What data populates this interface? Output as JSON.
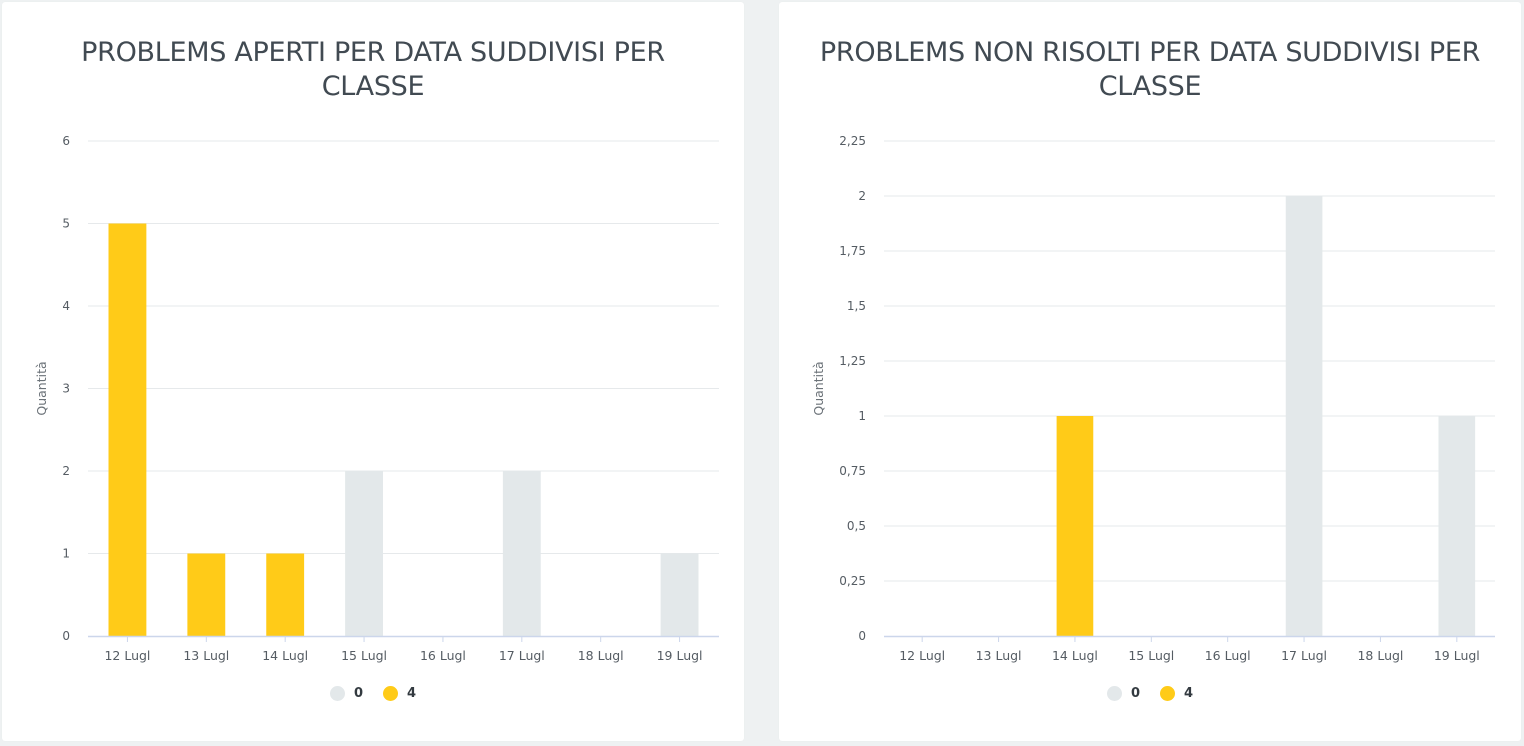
{
  "colors": {
    "series_0": "#e3e8ea",
    "series_4": "#ffcb18",
    "grid": "#e6e9eb",
    "axis": "#ccd6eb"
  },
  "chart_data": [
    {
      "type": "bar",
      "title": "PROBLEMS APERTI PER DATA SUDDIVISI PER CLASSE",
      "ylabel": "Quantità",
      "xlabel": "",
      "categories": [
        "12 Lugl",
        "13 Lugl",
        "14 Lugl",
        "15 Lugl",
        "16 Lugl",
        "17 Lugl",
        "18 Lugl",
        "19 Lugl"
      ],
      "series": [
        {
          "name": "0",
          "values": [
            0,
            0,
            0,
            2,
            0,
            2,
            0,
            1
          ]
        },
        {
          "name": "4",
          "values": [
            5,
            1,
            1,
            0,
            0,
            0,
            0,
            0
          ]
        }
      ],
      "ylim": [
        0,
        6
      ],
      "yticks": [
        0,
        1,
        2,
        3,
        4,
        5,
        6
      ],
      "ytick_labels": [
        "0",
        "1",
        "2",
        "3",
        "4",
        "5",
        "6"
      ],
      "stacked": true,
      "grid": true,
      "legend_position": "bottom-center"
    },
    {
      "type": "bar",
      "title": "PROBLEMS NON RISOLTI PER DATA SUDDIVISI PER CLASSE",
      "ylabel": "Quantità",
      "xlabel": "",
      "categories": [
        "12 Lugl",
        "13 Lugl",
        "14 Lugl",
        "15 Lugl",
        "16 Lugl",
        "17 Lugl",
        "18 Lugl",
        "19 Lugl"
      ],
      "series": [
        {
          "name": "0",
          "values": [
            0,
            0,
            0,
            0,
            0,
            2,
            0,
            1
          ]
        },
        {
          "name": "4",
          "values": [
            0,
            0,
            1,
            0,
            0,
            0,
            0,
            0
          ]
        }
      ],
      "ylim": [
        0,
        2.25
      ],
      "yticks": [
        0,
        0.25,
        0.5,
        0.75,
        1,
        1.25,
        1.5,
        1.75,
        2,
        2.25
      ],
      "ytick_labels": [
        "0",
        "0,25",
        "0,5",
        "0,75",
        "1",
        "1,25",
        "1,5",
        "1,75",
        "2",
        "2,25"
      ],
      "stacked": true,
      "grid": true,
      "legend_position": "bottom-center"
    }
  ]
}
